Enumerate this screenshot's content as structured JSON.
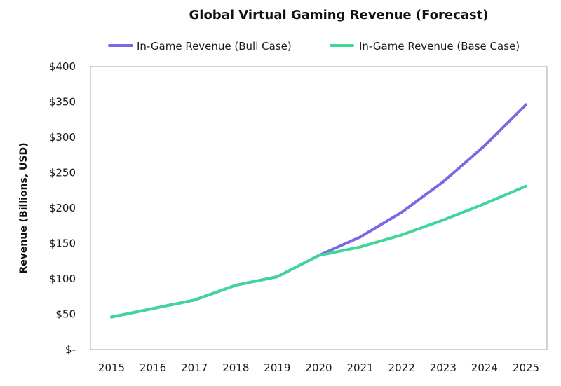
{
  "chart_data": {
    "type": "line",
    "title": "Global Virtual Gaming Revenue (Forecast)",
    "xlabel": "",
    "ylabel": "Revenue (Billions, USD)",
    "categories": [
      "2015",
      "2016",
      "2017",
      "2018",
      "2019",
      "2020",
      "2021",
      "2022",
      "2023",
      "2024",
      "2025"
    ],
    "ylim": [
      0,
      400
    ],
    "yticks": [
      0,
      50,
      100,
      150,
      200,
      250,
      300,
      350,
      400
    ],
    "ytick_labels": [
      "$-",
      "$50",
      "$100",
      "$150",
      "$200",
      "$250",
      "$300",
      "$350",
      "$400"
    ],
    "grid": false,
    "legend_position": "top",
    "series": [
      {
        "name": "In-Game Revenue (Bull Case)",
        "color": "#7b68e6",
        "values": [
          46,
          58,
          70,
          91,
          103,
          133,
          159,
          194,
          237,
          288,
          346
        ]
      },
      {
        "name": "In-Game Revenue (Base Case)",
        "color": "#3fd69a",
        "values": [
          46,
          58,
          70,
          91,
          103,
          133,
          145,
          162,
          183,
          206,
          231
        ]
      }
    ]
  }
}
